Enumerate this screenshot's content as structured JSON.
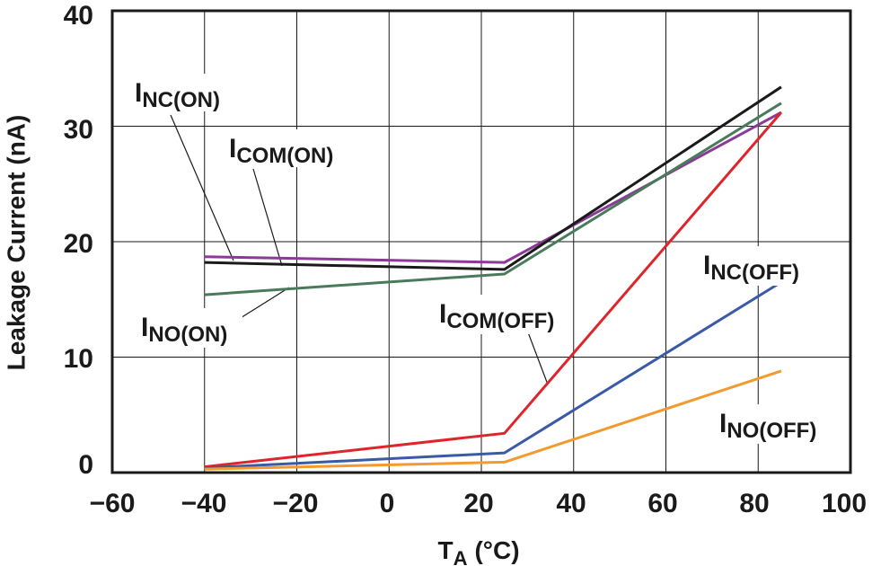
{
  "chart_data": {
    "type": "line",
    "title": "",
    "xlabel": {
      "main": "T",
      "sub": "A",
      "unit": "(°C)"
    },
    "ylabel": "Leakage Current (nA)",
    "xlim": [
      -60,
      100
    ],
    "ylim": [
      0,
      40
    ],
    "xticks": [
      -60,
      -40,
      -20,
      0,
      20,
      40,
      60,
      80,
      100
    ],
    "xtick_labels": [
      "−60",
      "−40",
      "−20",
      "0",
      "20",
      "40",
      "60",
      "80",
      "100"
    ],
    "yticks": [
      0,
      10,
      20,
      30,
      40
    ],
    "ytick_labels": [
      "0",
      "10",
      "20",
      "30",
      "40"
    ],
    "grid": true,
    "series": [
      {
        "name": "INC(ON)",
        "main": "I",
        "sub": "NC(ON)",
        "color": "#8B3A96",
        "x": [
          -40,
          25,
          85
        ],
        "y": [
          18.7,
          18.2,
          31.2
        ]
      },
      {
        "name": "ICOM(ON)",
        "main": "I",
        "sub": "COM(ON)",
        "color": "#1a1a1a",
        "x": [
          -40,
          25,
          85
        ],
        "y": [
          18.2,
          17.6,
          33.4
        ]
      },
      {
        "name": "INO(ON)",
        "main": "I",
        "sub": "NO(ON)",
        "color": "#4A7A5C",
        "x": [
          -40,
          25,
          85
        ],
        "y": [
          15.4,
          17.2,
          32.0
        ]
      },
      {
        "name": "ICOM(OFF)",
        "main": "I",
        "sub": "COM(OFF)",
        "color": "#E0242C",
        "x": [
          -40,
          25,
          85
        ],
        "y": [
          0.5,
          3.4,
          31.2
        ]
      },
      {
        "name": "INC(OFF)",
        "main": "I",
        "sub": "NC(OFF)",
        "color": "#3A5AA8",
        "x": [
          -40,
          25,
          85
        ],
        "y": [
          0.4,
          1.7,
          16.5
        ]
      },
      {
        "name": "INO(OFF)",
        "main": "I",
        "sub": "NO(OFF)",
        "color": "#F29A2E",
        "x": [
          -40,
          25,
          85
        ],
        "y": [
          0.3,
          0.9,
          8.8
        ]
      }
    ]
  }
}
